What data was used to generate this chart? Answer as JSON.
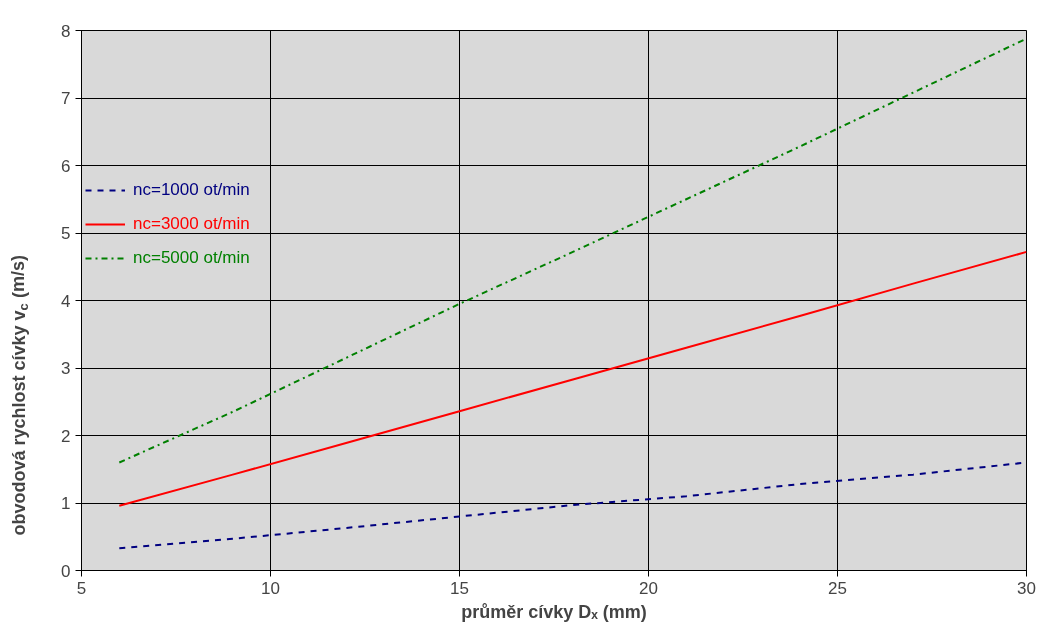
{
  "chart_data": {
    "type": "line",
    "xlabel": "průměr cívky Dₓ (mm)",
    "ylabel": "obvodová rychlost cívky v$_{c}$ (m/s)",
    "x": [
      6,
      9,
      12,
      15,
      18,
      21,
      24,
      27,
      30
    ],
    "series": [
      {
        "name": "nc=1000 ot/min",
        "color": "#000080",
        "line_style": "dashed",
        "values": [
          0.33,
          0.47,
          0.63,
          0.8,
          0.97,
          1.1,
          1.28,
          1.42,
          1.6
        ]
      },
      {
        "name": "nc=3000 ot/min",
        "color": "#ff0000",
        "line_style": "solid",
        "values": [
          0.96,
          1.42,
          1.89,
          2.36,
          2.83,
          3.3,
          3.77,
          4.25,
          4.72
        ]
      },
      {
        "name": "nc=5000 ot/min",
        "color": "#008000",
        "line_style": "dashdot",
        "values": [
          1.6,
          2.35,
          3.15,
          3.95,
          4.72,
          5.5,
          6.28,
          7.08,
          7.88
        ]
      }
    ],
    "xlim": [
      5,
      30
    ],
    "ylim": [
      0,
      8
    ],
    "xticks": [
      5,
      10,
      15,
      20,
      25,
      30
    ],
    "yticks": [
      0,
      1,
      2,
      3,
      4,
      5,
      6,
      7,
      8
    ],
    "grid": true,
    "legend": "top left"
  }
}
